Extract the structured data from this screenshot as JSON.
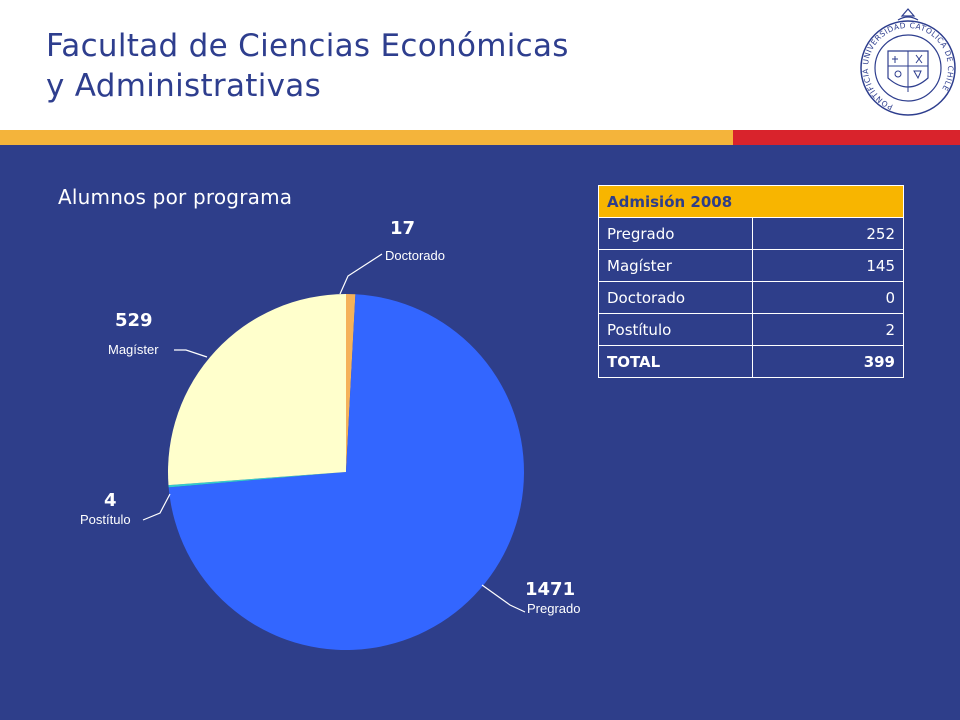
{
  "header": {
    "title_line1": "Facultad de Ciencias Económicas",
    "title_line2": "y Administrativas",
    "seal_text": "PONTIFICIA UNIVERSIDAD CATOLICA DE CHILE"
  },
  "colors": {
    "title": "#2e3e8e",
    "background": "#2e3e8a",
    "stripe_gold": "#f4b43b",
    "stripe_red": "#d9232c",
    "table_header": "#f8b500"
  },
  "chart_data": {
    "type": "pie",
    "title": "Alumnos por programa",
    "slices": [
      {
        "label": "Doctorado",
        "value": 17,
        "color": "#f5b25a"
      },
      {
        "label": "Pregrado",
        "value": 1471,
        "color": "#3366ff"
      },
      {
        "label": "Postítulo",
        "value": 4,
        "color": "#33cccc"
      },
      {
        "label": "Magíster",
        "value": 529,
        "color": "#ffffcc"
      }
    ]
  },
  "table": {
    "header": "Admisión 2008",
    "rows": [
      {
        "label": "Pregrado",
        "value": "252"
      },
      {
        "label": "Magíster",
        "value": "145"
      },
      {
        "label": "Doctorado",
        "value": "0"
      },
      {
        "label": "Postítulo",
        "value": "2"
      }
    ],
    "total": {
      "label": "TOTAL",
      "value": "399"
    }
  }
}
